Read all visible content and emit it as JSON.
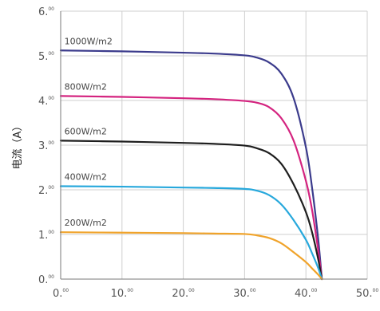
{
  "chart_data": {
    "type": "line",
    "title": "",
    "xlabel": "",
    "ylabel": "电流（A）",
    "xlim": [
      0,
      50
    ],
    "ylim": [
      0,
      6
    ],
    "x_ticks": [
      {
        "main": "0.",
        "sup": "00"
      },
      {
        "main": "10.",
        "sup": "00"
      },
      {
        "main": "20.",
        "sup": "00"
      },
      {
        "main": "30.",
        "sup": "00"
      },
      {
        "main": "40.",
        "sup": "00"
      },
      {
        "main": "50.",
        "sup": "00"
      }
    ],
    "y_ticks": [
      {
        "main": "0.",
        "sup": "00"
      },
      {
        "main": "1.",
        "sup": "00"
      },
      {
        "main": "2.",
        "sup": "00"
      },
      {
        "main": "3.",
        "sup": "00"
      },
      {
        "main": "4.",
        "sup": "00"
      },
      {
        "main": "5.",
        "sup": "00"
      },
      {
        "main": "6.",
        "sup": "00"
      }
    ],
    "grid": true,
    "series": [
      {
        "name": "1000W/m2",
        "color": "#3b3b8c",
        "x": [
          0,
          10,
          20,
          25,
          30,
          32,
          34,
          36,
          38,
          40,
          41,
          42,
          42.6
        ],
        "y": [
          5.12,
          5.1,
          5.07,
          5.05,
          5.01,
          4.96,
          4.85,
          4.6,
          4.05,
          2.95,
          2.05,
          0.9,
          0.0
        ]
      },
      {
        "name": "800W/m2",
        "color": "#d4237f",
        "x": [
          0,
          10,
          20,
          25,
          30,
          32,
          34,
          36,
          38,
          40,
          41,
          42,
          42.6
        ],
        "y": [
          4.1,
          4.08,
          4.05,
          4.03,
          3.99,
          3.95,
          3.85,
          3.6,
          3.1,
          2.2,
          1.55,
          0.65,
          0.0
        ]
      },
      {
        "name": "600W/m2",
        "color": "#1e1e1e",
        "x": [
          0,
          10,
          20,
          25,
          30,
          32,
          34,
          36,
          38,
          40,
          41,
          42,
          42.6
        ],
        "y": [
          3.1,
          3.08,
          3.05,
          3.03,
          2.99,
          2.93,
          2.82,
          2.58,
          2.12,
          1.5,
          1.05,
          0.45,
          0.0
        ]
      },
      {
        "name": "400W/m2",
        "color": "#27a8dc",
        "x": [
          0,
          10,
          20,
          25,
          30,
          32,
          34,
          36,
          38,
          40,
          41,
          42,
          42.6
        ],
        "y": [
          2.08,
          2.07,
          2.05,
          2.04,
          2.02,
          1.98,
          1.88,
          1.67,
          1.32,
          0.88,
          0.58,
          0.25,
          0.0
        ]
      },
      {
        "name": "200W/m2",
        "color": "#f0a32a",
        "x": [
          0,
          10,
          20,
          25,
          30,
          32,
          34,
          36,
          38,
          40,
          41,
          42,
          42.6
        ],
        "y": [
          1.05,
          1.04,
          1.03,
          1.02,
          1.01,
          0.98,
          0.92,
          0.8,
          0.6,
          0.38,
          0.24,
          0.1,
          0.0
        ]
      }
    ]
  }
}
